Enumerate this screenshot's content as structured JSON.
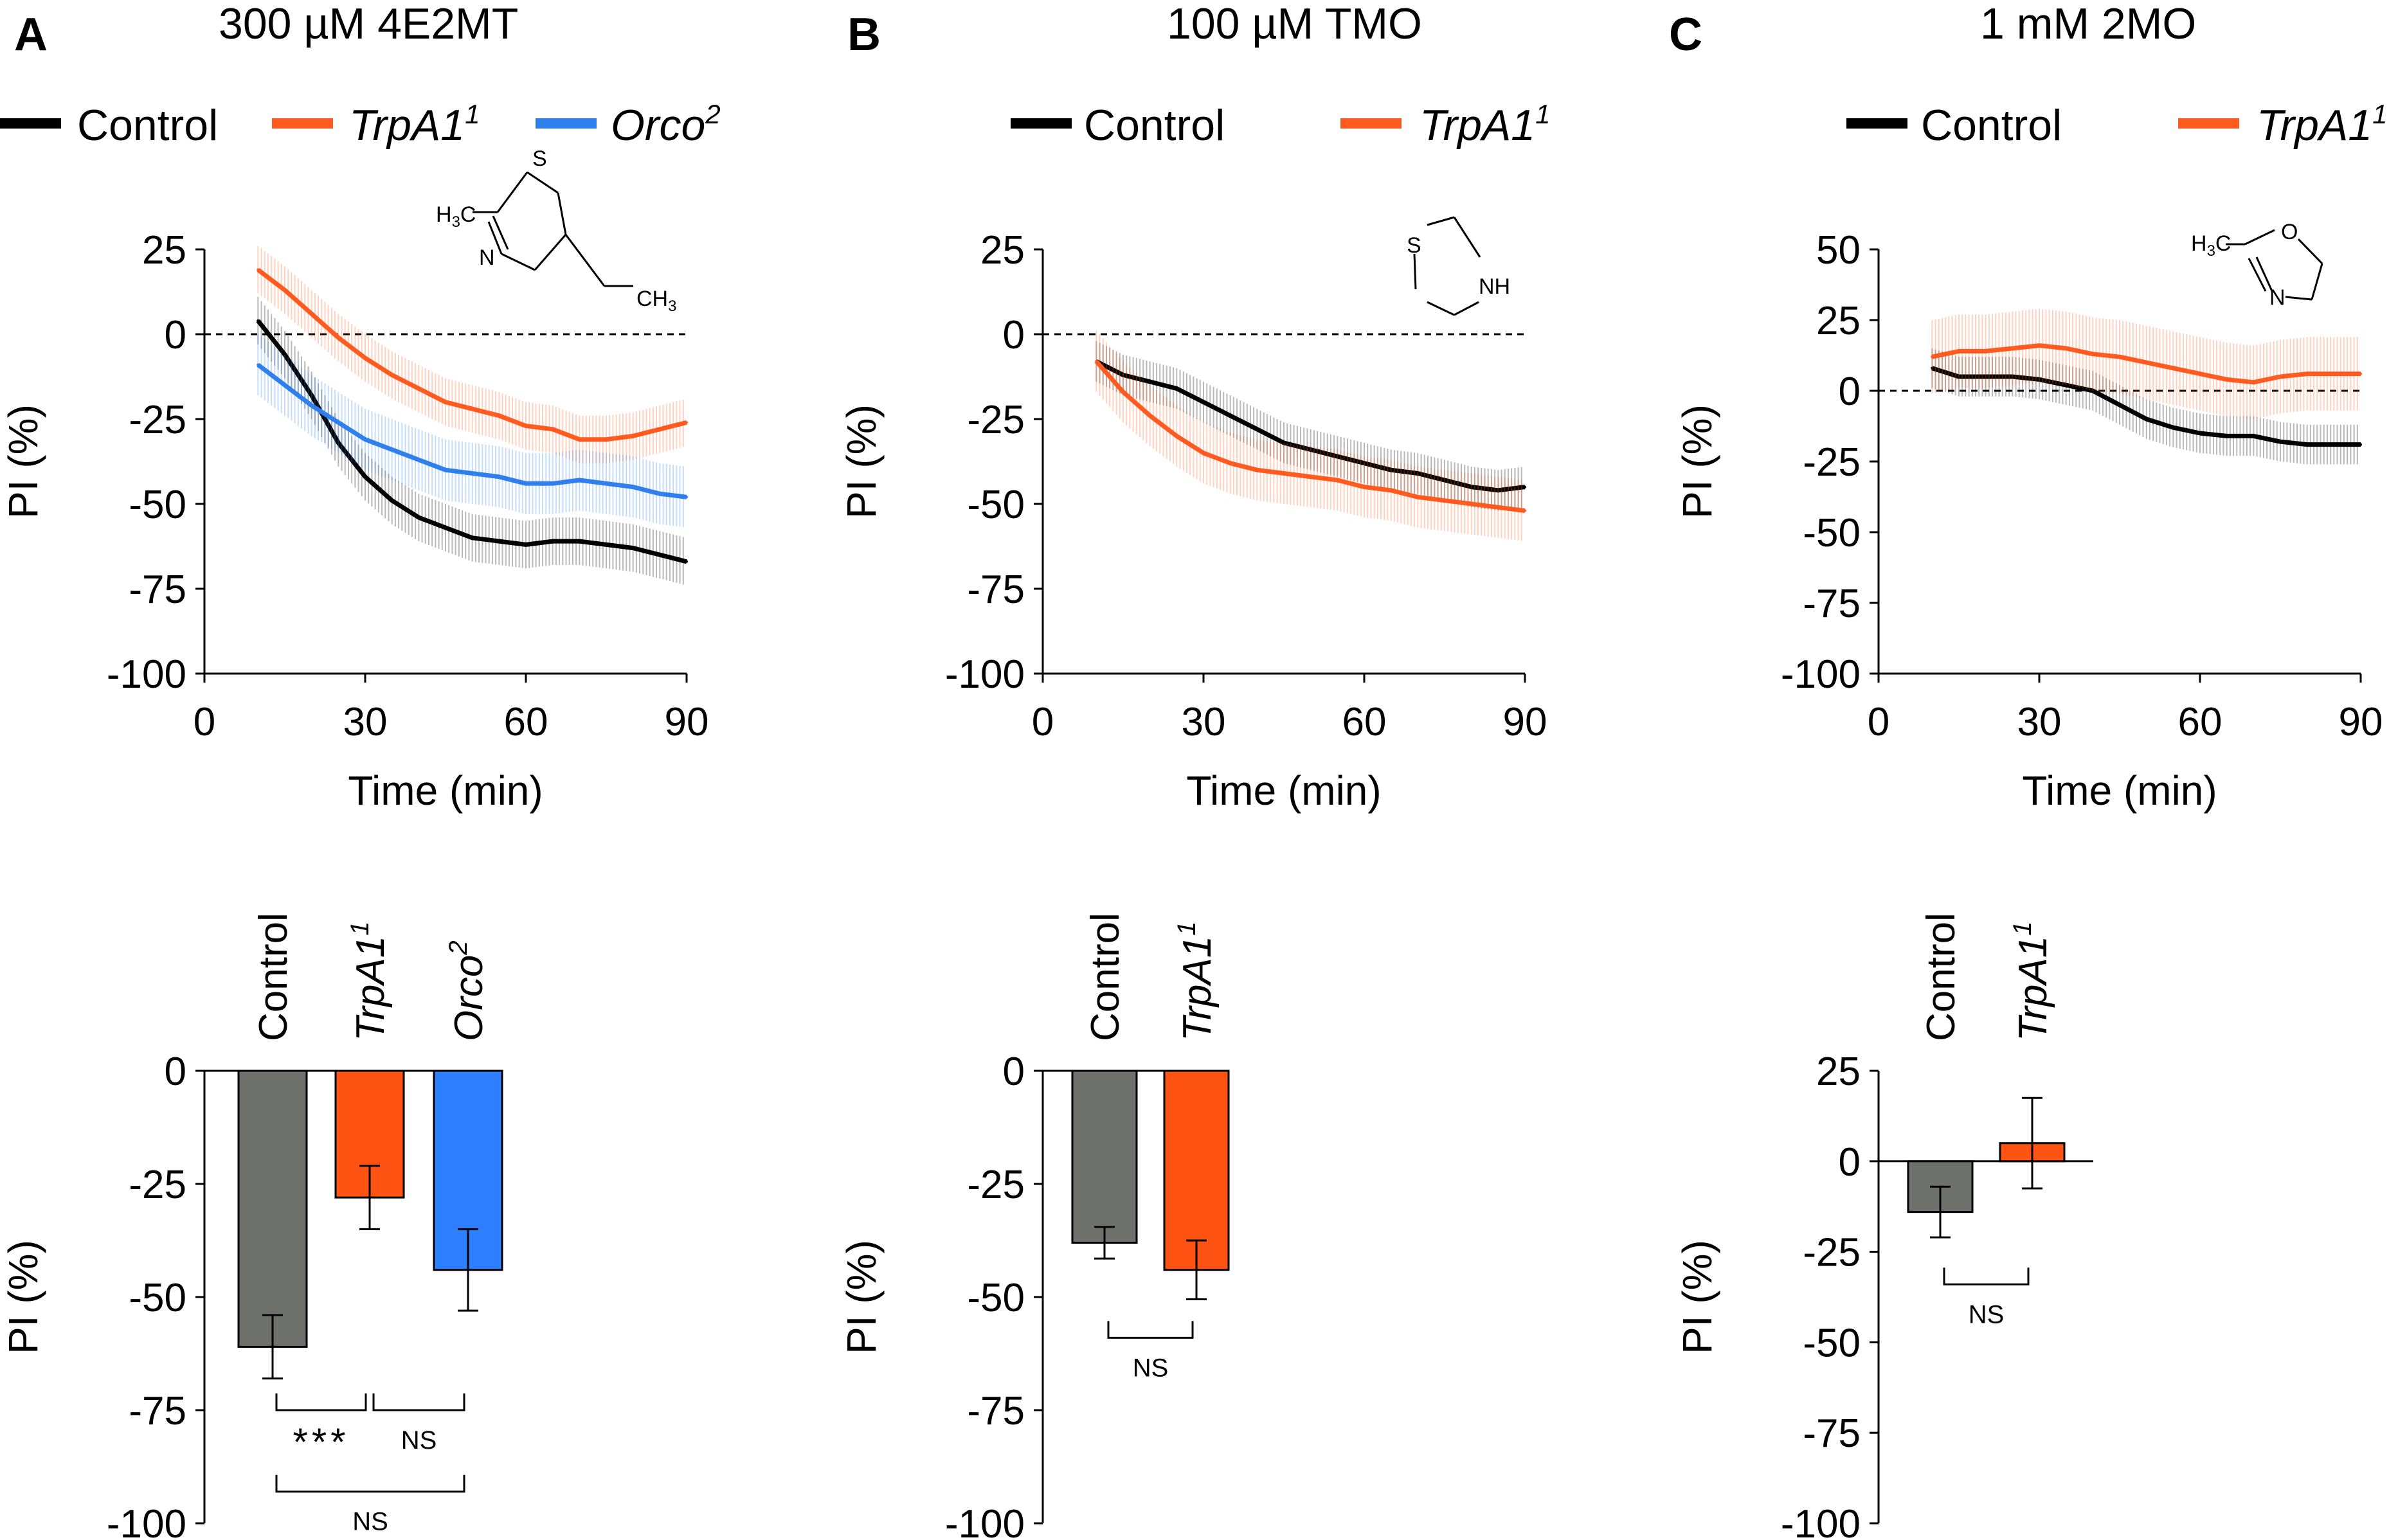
{
  "panels": [
    {
      "letter": "A",
      "title": "300 µM 4E2MT"
    },
    {
      "letter": "B",
      "title": "100 µM TMO"
    },
    {
      "letter": "C",
      "title": "1 mM 2MO"
    }
  ],
  "genotypes": {
    "control": "Control",
    "trpa1": "TrpA1",
    "trpa1_sup": "1",
    "orco": "Orco",
    "orco_sup": "2"
  },
  "colors": {
    "control": "#000000",
    "trpa1": "#FF5A1F",
    "orco": "#2F80ED",
    "control_bar": "#6E716B",
    "trpa1_bar": "#FF5313",
    "orco_bar": "#2D7FFF"
  },
  "structures": {
    "a": {
      "h3c": "H",
      "three": "3",
      "c": "C",
      "s": "S",
      "n": "N",
      "ch": "CH",
      "ch3sub": "3"
    },
    "b": {
      "s": "S",
      "nh": "NH"
    },
    "c": {
      "h3c": "H",
      "three": "3",
      "c": "C",
      "o": "O",
      "n": "N"
    }
  },
  "chart_data": [
    {
      "id": "A-time",
      "type": "line",
      "title": "300 µM 4E2MT",
      "xlabel": "Time (min)",
      "ylabel": "PI (%)",
      "xlim": [
        0,
        90
      ],
      "ylim": [
        -100,
        25
      ],
      "xticks": [
        0,
        30,
        60,
        90
      ],
      "yticks": [
        25,
        0,
        -25,
        -50,
        -75,
        -100
      ],
      "ytick_labels": [
        "25",
        "0",
        "-25",
        "-50",
        "-75",
        "-100"
      ],
      "xtick_labels": [
        "0",
        "30",
        "60",
        "90"
      ],
      "reference_line": 0,
      "x": [
        10,
        15,
        20,
        25,
        30,
        35,
        40,
        45,
        50,
        55,
        60,
        65,
        70,
        75,
        80,
        85,
        90
      ],
      "series": [
        {
          "name": "Control",
          "color": "#000000",
          "err": 7,
          "values": [
            4,
            -6,
            -18,
            -32,
            -42,
            -49,
            -54,
            -57,
            -60,
            -61,
            -62,
            -61,
            -61,
            -62,
            -63,
            -65,
            -67
          ]
        },
        {
          "name": "TrpA1",
          "color": "#FF5A1F",
          "err": 7,
          "values": [
            19,
            13,
            6,
            -1,
            -7,
            -12,
            -16,
            -20,
            -22,
            -24,
            -27,
            -28,
            -31,
            -31,
            -30,
            -28,
            -26
          ]
        },
        {
          "name": "Orco",
          "color": "#2F80ED",
          "err": 9,
          "values": [
            -9,
            -15,
            -21,
            -26,
            -31,
            -34,
            -37,
            -40,
            -41,
            -42,
            -44,
            -44,
            -43,
            -44,
            -45,
            -47,
            -48
          ]
        }
      ]
    },
    {
      "id": "B-time",
      "type": "line",
      "title": "100 µM TMO",
      "xlabel": "Time (min)",
      "ylabel": "PI (%)",
      "xlim": [
        0,
        90
      ],
      "ylim": [
        -100,
        25
      ],
      "xticks": [
        0,
        30,
        60,
        90
      ],
      "yticks": [
        25,
        0,
        -25,
        -50,
        -75,
        -100
      ],
      "ytick_labels": [
        "25",
        "0",
        "-25",
        "-50",
        "-75",
        "-100"
      ],
      "xtick_labels": [
        "0",
        "30",
        "60",
        "90"
      ],
      "reference_line": 0,
      "x": [
        10,
        15,
        20,
        25,
        30,
        35,
        40,
        45,
        50,
        55,
        60,
        65,
        70,
        75,
        80,
        85,
        90
      ],
      "series": [
        {
          "name": "Control",
          "color": "#000000",
          "err": 6,
          "values": [
            -8,
            -12,
            -14,
            -16,
            -20,
            -24,
            -28,
            -32,
            -34,
            -36,
            -38,
            -40,
            -41,
            -43,
            -45,
            -46,
            -45
          ]
        },
        {
          "name": "TrpA1",
          "color": "#FF5A1F",
          "err": 9,
          "values": [
            -8,
            -17,
            -24,
            -30,
            -35,
            -38,
            -40,
            -41,
            -42,
            -43,
            -45,
            -46,
            -48,
            -49,
            -50,
            -51,
            -52
          ]
        }
      ]
    },
    {
      "id": "C-time",
      "type": "line",
      "title": "1 mM 2MO",
      "xlabel": "Time (min)",
      "ylabel": "PI (%)",
      "xlim": [
        0,
        90
      ],
      "ylim": [
        -100,
        50
      ],
      "xticks": [
        0,
        30,
        60,
        90
      ],
      "yticks": [
        50,
        25,
        0,
        -25,
        -50,
        -75,
        -100
      ],
      "ytick_labels": [
        "50",
        "25",
        "0",
        "-25",
        "-50",
        "-75",
        "-100"
      ],
      "xtick_labels": [
        "0",
        "30",
        "60",
        "90"
      ],
      "reference_line": 0,
      "x": [
        10,
        15,
        20,
        25,
        30,
        35,
        40,
        45,
        50,
        55,
        60,
        65,
        70,
        75,
        80,
        85,
        90
      ],
      "series": [
        {
          "name": "Control",
          "color": "#000000",
          "err": 7,
          "values": [
            8,
            5,
            5,
            5,
            4,
            2,
            0,
            -5,
            -10,
            -13,
            -15,
            -16,
            -16,
            -18,
            -19,
            -19,
            -19
          ]
        },
        {
          "name": "TrpA1",
          "color": "#FF5A1F",
          "err": 13,
          "values": [
            12,
            14,
            14,
            15,
            16,
            15,
            13,
            12,
            10,
            8,
            6,
            4,
            3,
            5,
            6,
            6,
            6
          ]
        }
      ]
    },
    {
      "id": "A-bar",
      "type": "bar",
      "ylabel": "PI (%)",
      "ylim": [
        -100,
        0
      ],
      "yticks": [
        0,
        -25,
        -50,
        -75,
        -100
      ],
      "ytick_labels": [
        "0",
        "-25",
        "-50",
        "-75",
        "-100"
      ],
      "categories": [
        "Control",
        "TrpA1",
        "Orco"
      ],
      "values": [
        -61,
        -28,
        -44
      ],
      "errors": [
        7,
        7,
        9
      ],
      "colors": [
        "#6E716B",
        "#FF5313",
        "#2D7FFF"
      ],
      "comparisons": [
        {
          "from": 0,
          "to": 1,
          "label": "***",
          "level": -75
        },
        {
          "from": 1,
          "to": 2,
          "label": "NS",
          "level": -75
        },
        {
          "from": 0,
          "to": 2,
          "label": "NS",
          "level": -93
        }
      ]
    },
    {
      "id": "B-bar",
      "type": "bar",
      "ylabel": "PI (%)",
      "ylim": [
        -100,
        0
      ],
      "yticks": [
        0,
        -25,
        -50,
        -75,
        -100
      ],
      "ytick_labels": [
        "0",
        "-25",
        "-50",
        "-75",
        "-100"
      ],
      "categories": [
        "Control",
        "TrpA1"
      ],
      "values": [
        -38,
        -44
      ],
      "errors": [
        3.5,
        6.5
      ],
      "colors": [
        "#6E716B",
        "#FF5313"
      ],
      "comparisons": [
        {
          "from": 0,
          "to": 1,
          "label": "NS",
          "level": -59
        }
      ]
    },
    {
      "id": "C-bar",
      "type": "bar",
      "ylabel": "PI (%)",
      "ylim": [
        -100,
        25
      ],
      "yticks": [
        25,
        0,
        -25,
        -50,
        -75,
        -100
      ],
      "ytick_labels": [
        "25",
        "0",
        "-25",
        "-50",
        "-75",
        "-100"
      ],
      "categories": [
        "Control",
        "TrpA1"
      ],
      "values": [
        -14,
        5
      ],
      "errors": [
        7,
        12.5
      ],
      "colors": [
        "#6E716B",
        "#FF5313"
      ],
      "comparisons": [
        {
          "from": 0,
          "to": 1,
          "label": "NS",
          "level": -34
        }
      ]
    }
  ]
}
